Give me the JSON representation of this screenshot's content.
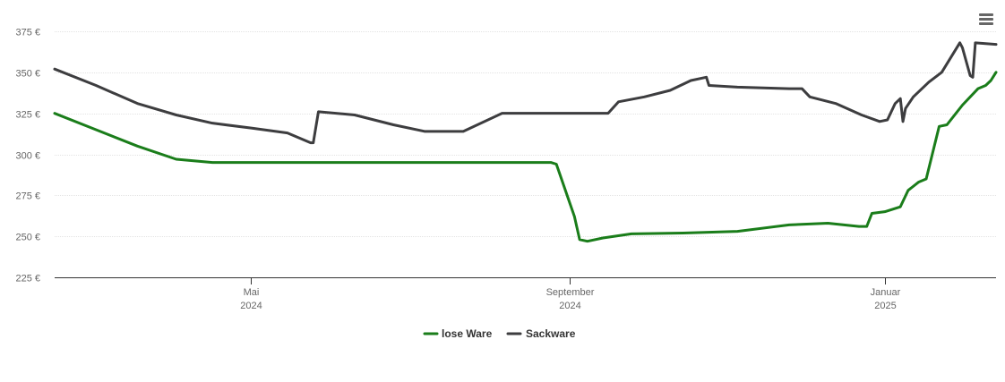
{
  "menu": {
    "icon": "hamburger-menu-icon"
  },
  "chart_data": {
    "type": "line",
    "y_axis": {
      "min": 225,
      "max": 375,
      "ticks": [
        375,
        350,
        325,
        300,
        275,
        250,
        225
      ],
      "tick_labels": [
        "375 €",
        "350 €",
        "325 €",
        "300 €",
        "275 €",
        "250 €",
        "225 €"
      ],
      "grid": true
    },
    "x_axis": {
      "range": [
        "2024-02-15",
        "2025-02-13"
      ],
      "ticks": [
        {
          "date": "2024-05-01",
          "line1": "Mai",
          "line2": "2024"
        },
        {
          "date": "2024-09-01",
          "line1": "September",
          "line2": "2024"
        },
        {
          "date": "2025-01-01",
          "line1": "Januar",
          "line2": "2025"
        }
      ]
    },
    "legend_position": "bottom-center",
    "series": [
      {
        "name": "lose Ware",
        "color": "#1a7d1a",
        "points": [
          [
            "2024-02-15",
            325
          ],
          [
            "2024-03-02",
            315
          ],
          [
            "2024-03-18",
            305
          ],
          [
            "2024-04-02",
            297
          ],
          [
            "2024-04-16",
            295
          ],
          [
            "2024-05-01",
            295
          ],
          [
            "2024-06-01",
            295
          ],
          [
            "2024-07-01",
            295
          ],
          [
            "2024-08-01",
            295
          ],
          [
            "2024-08-25",
            295
          ],
          [
            "2024-08-27",
            294
          ],
          [
            "2024-09-03",
            262
          ],
          [
            "2024-09-05",
            248
          ],
          [
            "2024-09-08",
            247
          ],
          [
            "2024-09-14",
            249
          ],
          [
            "2024-09-25",
            251.5
          ],
          [
            "2024-10-15",
            252
          ],
          [
            "2024-11-05",
            253
          ],
          [
            "2024-11-25",
            257
          ],
          [
            "2024-12-10",
            258
          ],
          [
            "2024-12-22",
            256
          ],
          [
            "2024-12-25",
            256
          ],
          [
            "2024-12-27",
            264
          ],
          [
            "2025-01-01",
            265
          ],
          [
            "2025-01-07",
            268
          ],
          [
            "2025-01-10",
            278
          ],
          [
            "2025-01-14",
            283
          ],
          [
            "2025-01-17",
            285
          ],
          [
            "2025-01-22",
            317
          ],
          [
            "2025-01-25",
            318
          ],
          [
            "2025-01-31",
            330
          ],
          [
            "2025-02-06",
            340
          ],
          [
            "2025-02-09",
            342
          ],
          [
            "2025-02-11",
            345
          ],
          [
            "2025-02-13",
            350
          ]
        ]
      },
      {
        "name": "Sackware",
        "color": "#3d3d3f",
        "points": [
          [
            "2024-02-15",
            352
          ],
          [
            "2024-03-02",
            342
          ],
          [
            "2024-03-18",
            331
          ],
          [
            "2024-04-02",
            324
          ],
          [
            "2024-04-16",
            319
          ],
          [
            "2024-05-01",
            316
          ],
          [
            "2024-05-15",
            313
          ],
          [
            "2024-05-24",
            307
          ],
          [
            "2024-05-25",
            307
          ],
          [
            "2024-05-27",
            326
          ],
          [
            "2024-06-10",
            324
          ],
          [
            "2024-06-25",
            318
          ],
          [
            "2024-07-07",
            314
          ],
          [
            "2024-07-22",
            314
          ],
          [
            "2024-08-06",
            325
          ],
          [
            "2024-08-25",
            325
          ],
          [
            "2024-09-10",
            325
          ],
          [
            "2024-09-16",
            325
          ],
          [
            "2024-09-20",
            332
          ],
          [
            "2024-09-30",
            335
          ],
          [
            "2024-10-10",
            339
          ],
          [
            "2024-10-18",
            345
          ],
          [
            "2024-10-24",
            347
          ],
          [
            "2024-10-25",
            342
          ],
          [
            "2024-11-05",
            341
          ],
          [
            "2024-11-25",
            340
          ],
          [
            "2024-11-30",
            340
          ],
          [
            "2024-12-03",
            335
          ],
          [
            "2024-12-13",
            331
          ],
          [
            "2024-12-23",
            324
          ],
          [
            "2024-12-30",
            320
          ],
          [
            "2025-01-02",
            321
          ],
          [
            "2025-01-05",
            331
          ],
          [
            "2025-01-07",
            334
          ],
          [
            "2025-01-08",
            320
          ],
          [
            "2025-01-09",
            328
          ],
          [
            "2025-01-12",
            335
          ],
          [
            "2025-01-18",
            344
          ],
          [
            "2025-01-23",
            350
          ],
          [
            "2025-01-30",
            368
          ],
          [
            "2025-01-31",
            365
          ],
          [
            "2025-02-03",
            348
          ],
          [
            "2025-02-04",
            347
          ],
          [
            "2025-02-05",
            368
          ],
          [
            "2025-02-13",
            367
          ]
        ]
      }
    ]
  }
}
